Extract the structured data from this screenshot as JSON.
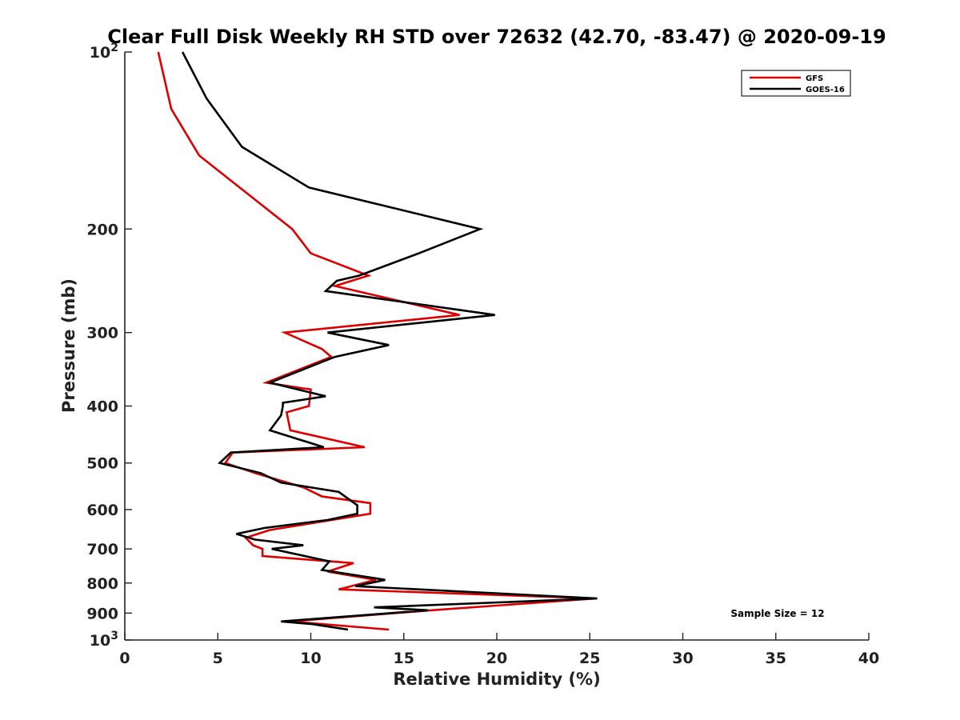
{
  "chart_data": {
    "type": "line",
    "title": "Clear Full Disk Weekly RH STD over 72632 (42.70, -83.47) @ 2020-09-19",
    "xlabel": "Relative Humidity (%)",
    "ylabel": "Pressure (mb)",
    "xlim": [
      0,
      40
    ],
    "ylim": [
      100,
      1000
    ],
    "y_scale": "log",
    "y_reversed": true,
    "x_ticks": [
      "0",
      "5",
      "10",
      "15",
      "20",
      "25",
      "30",
      "35",
      "40"
    ],
    "y_ticks": [
      {
        "value": 100,
        "base": "10",
        "exp": "2"
      },
      {
        "value": 200,
        "label": "200"
      },
      {
        "value": 300,
        "label": "300"
      },
      {
        "value": 400,
        "label": "400"
      },
      {
        "value": 500,
        "label": "500"
      },
      {
        "value": 600,
        "label": "600"
      },
      {
        "value": 700,
        "label": "700"
      },
      {
        "value": 800,
        "label": "800"
      },
      {
        "value": 900,
        "label": "900"
      },
      {
        "value": 1000,
        "base": "10",
        "exp": "3"
      }
    ],
    "legend_position": "top-right",
    "grid": false,
    "annotation": "Sample Size = 12",
    "series": [
      {
        "name": "GFS",
        "color": "#dd0000",
        "x": [
          1.8,
          2.5,
          4.0,
          9.0,
          10.0,
          13.1,
          11.3,
          18.0,
          8.6,
          10.6,
          11.1,
          7.6,
          10.0,
          9.9,
          8.7,
          8.9,
          12.9,
          5.8,
          5.4,
          7.0,
          9.6,
          10.6,
          13.2,
          13.2,
          7.8,
          6.5,
          6.9,
          7.4,
          7.4,
          12.3,
          10.9,
          13.5,
          11.5,
          25.3,
          16.5,
          8.9,
          14.2
        ],
        "y": [
          100,
          125,
          150,
          200,
          220,
          240,
          250,
          280,
          300,
          320,
          330,
          365,
          375,
          400,
          410,
          440,
          470,
          480,
          500,
          520,
          550,
          570,
          585,
          610,
          650,
          670,
          690,
          700,
          720,
          740,
          765,
          790,
          820,
          850,
          890,
          930,
          960
        ]
      },
      {
        "name": "GOES-16",
        "color": "#000000",
        "x": [
          3.1,
          4.4,
          6.3,
          9.9,
          19.1,
          15.8,
          12.6,
          11.4,
          10.8,
          19.9,
          10.9,
          14.2,
          11.3,
          7.8,
          10.8,
          8.5,
          8.5,
          8.4,
          7.8,
          10.7,
          5.7,
          5.1,
          7.3,
          8.4,
          11.5,
          12.5,
          12.5,
          10.9,
          7.5,
          6.0,
          7.0,
          9.6,
          7.9,
          11.0,
          10.6,
          14.0,
          12.4,
          25.4,
          13.4,
          16.3,
          8.4,
          10.1,
          12.0
        ],
        "y": [
          100,
          120,
          145,
          170,
          200,
          220,
          240,
          245,
          255,
          280,
          300,
          315,
          330,
          365,
          385,
          395,
          400,
          415,
          440,
          470,
          480,
          500,
          520,
          540,
          560,
          590,
          610,
          625,
          645,
          660,
          675,
          690,
          700,
          735,
          760,
          790,
          810,
          850,
          880,
          890,
          930,
          940,
          960
        ]
      }
    ]
  }
}
